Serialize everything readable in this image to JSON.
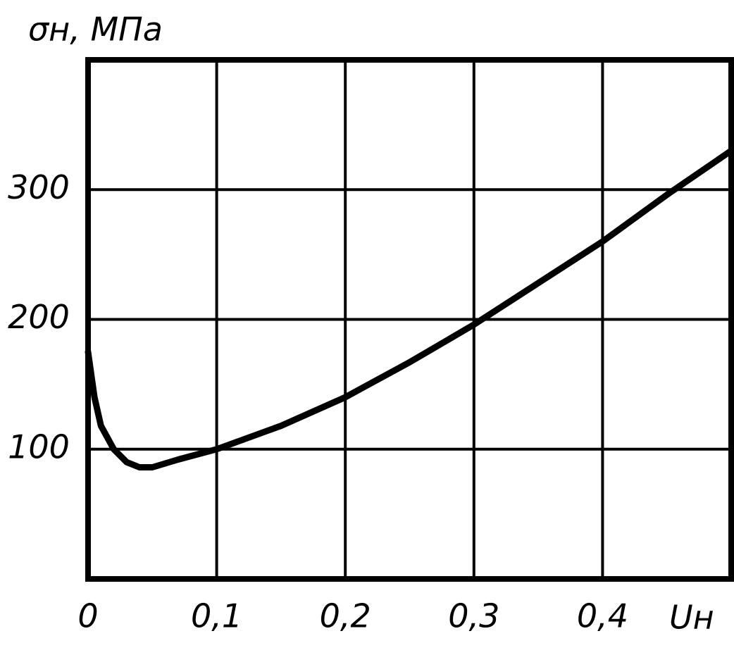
{
  "chart_data": {
    "type": "line",
    "x_label": "Uн",
    "y_label": "σн, МПа",
    "x": [
      0,
      0.005,
      0.01,
      0.02,
      0.03,
      0.04,
      0.05,
      0.07,
      0.1,
      0.15,
      0.2,
      0.25,
      0.3,
      0.35,
      0.4,
      0.45,
      0.5
    ],
    "values": [
      175,
      140,
      118,
      100,
      90,
      86,
      86,
      92,
      100,
      118,
      140,
      167,
      196,
      228,
      260,
      296,
      330
    ],
    "color": "#000000",
    "xlim": [
      0,
      0.5
    ],
    "ylim": [
      0,
      400
    ],
    "xticks": [
      0,
      {
        "value": 0.1,
        "label": "0,1"
      },
      {
        "value": 0.2,
        "label": "0,2"
      },
      {
        "value": 0.3,
        "label": "0,3"
      },
      {
        "value": 0.4,
        "label": "0,4"
      }
    ],
    "yticks": [
      100,
      200,
      300
    ],
    "grid": true
  }
}
